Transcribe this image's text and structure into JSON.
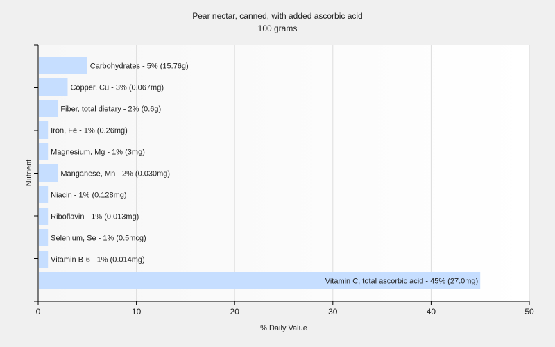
{
  "chart_data": {
    "type": "bar",
    "orientation": "horizontal",
    "title": "Pear nectar, canned, with added ascorbic acid",
    "subtitle": "100 grams",
    "xlabel": "% Daily Value",
    "ylabel": "Nutrient",
    "xlim": [
      0,
      50
    ],
    "xticks": [
      "0",
      "10",
      "20",
      "30",
      "40",
      "50"
    ],
    "grid": "vertical",
    "bar_color": "#c6deff",
    "categories": [
      "Carbohydrates",
      "Copper, Cu",
      "Fiber, total dietary",
      "Iron, Fe",
      "Magnesium, Mg",
      "Manganese, Mn",
      "Niacin",
      "Riboflavin",
      "Selenium, Se",
      "Vitamin B-6",
      "Vitamin C, total ascorbic acid"
    ],
    "values": [
      5,
      3,
      2,
      1,
      1,
      2,
      1,
      1,
      1,
      1,
      45
    ],
    "labels": [
      "Carbohydrates - 5% (15.76g)",
      "Copper, Cu - 3% (0.067mg)",
      "Fiber, total dietary - 2% (0.6g)",
      "Iron, Fe - 1% (0.26mg)",
      "Magnesium, Mg - 1% (3mg)",
      "Manganese, Mn - 2% (0.030mg)",
      "Niacin - 1% (0.128mg)",
      "Riboflavin - 1% (0.013mg)",
      "Selenium, Se - 1% (0.5mcg)",
      "Vitamin B-6 - 1% (0.014mg)",
      "Vitamin C, total ascorbic acid - 45% (27.0mg)"
    ]
  }
}
